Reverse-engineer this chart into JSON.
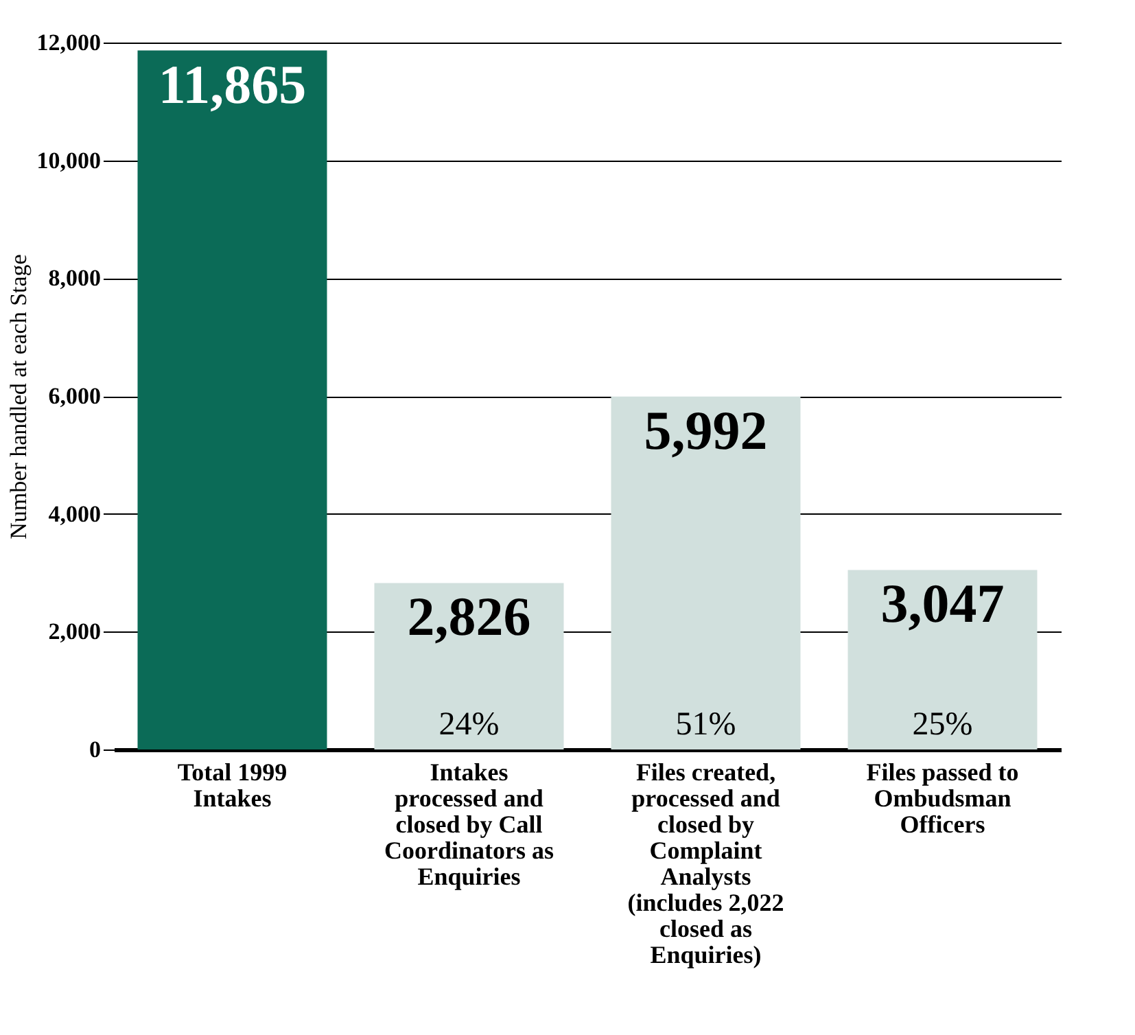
{
  "chart_data": {
    "type": "bar",
    "ylabel": "Number handled at each Stage",
    "categories": [
      "Total 1999 Intakes",
      "Intakes processed and closed by Call Coordinators as Enquiries",
      "Files created, processed and closed by Complaint Analysts (includes 2,022 closed as Enquiries)",
      "Files passed to Ombudsman Officers"
    ],
    "values": [
      11865,
      2826,
      5992,
      3047
    ],
    "colors": [
      "#0b6b57",
      "#d1e0dd",
      "#d1e0dd",
      "#d1e0dd"
    ],
    "ylim": [
      0,
      12000
    ],
    "yticks": [
      0,
      {
        "value": 2000,
        "label": "2,000"
      },
      {
        "value": 4000,
        "label": "4,000"
      },
      {
        "value": 6000,
        "label": "6,000"
      },
      {
        "value": 8000,
        "label": "8,000"
      },
      {
        "value": 10000,
        "label": "10,000"
      },
      {
        "value": 12000,
        "label": "12,000"
      }
    ],
    "grid": "y",
    "value_labels": [
      "11,865",
      "2,826",
      "5,992",
      "3,047"
    ],
    "annotations": [
      "24%",
      "51%",
      "25%"
    ]
  }
}
